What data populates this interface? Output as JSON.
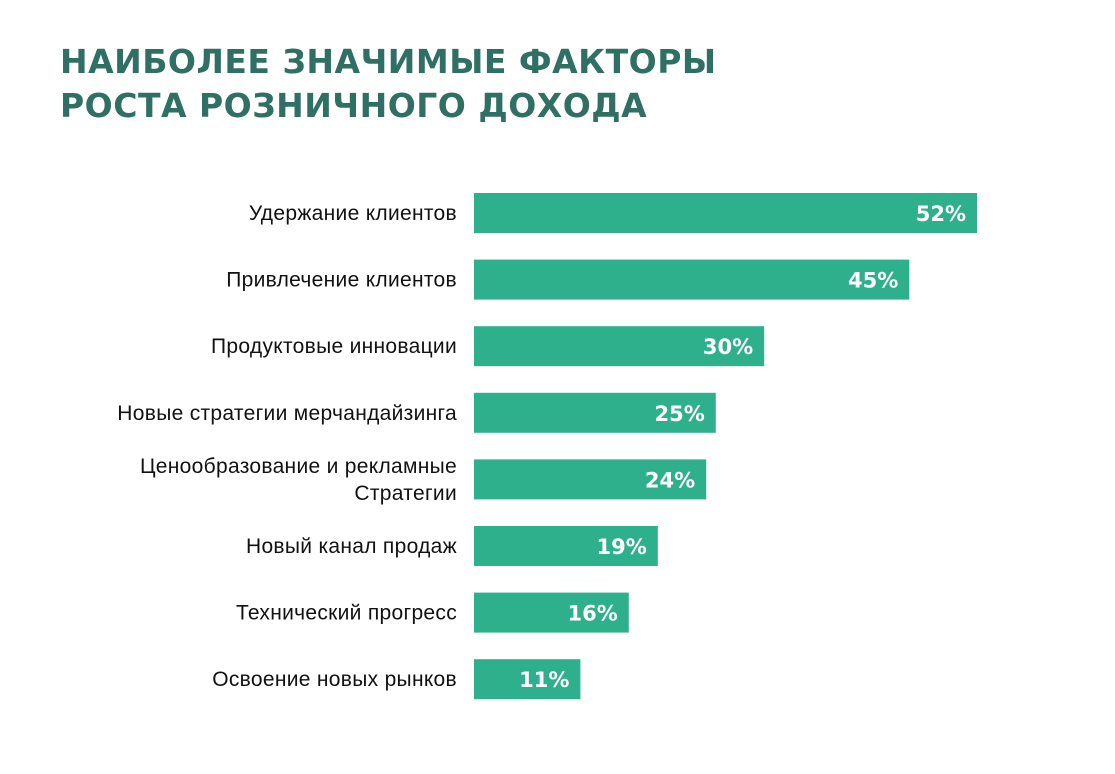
{
  "title_lines": [
    "НАИБОЛЕЕ ЗНАЧИМЫЕ ФАКТОРЫ",
    "РОСТА РОЗНИЧНОГО ДОХОДА"
  ],
  "colors": {
    "title": "#2f6f64",
    "bar": "#2fb08d",
    "value_label": "#ffffff",
    "category_label": "#111111"
  },
  "chart_data": {
    "type": "bar",
    "orientation": "horizontal",
    "title": "НАИБОЛЕЕ ЗНАЧИМЫЕ ФАКТОРЫ РОСТА РОЗНИЧНОГО ДОХОДА",
    "categories": [
      [
        "Удержание клиентов"
      ],
      [
        "Привлечение клиентов"
      ],
      [
        "Продуктовые инновации"
      ],
      [
        "Новые стратегии мерчандайзинга"
      ],
      [
        "Ценообразование и рекламные",
        "Стратегии"
      ],
      [
        "Новый канал продаж"
      ],
      [
        "Технический прогресс"
      ],
      [
        "Освоение новых рынков"
      ]
    ],
    "values": [
      52,
      45,
      30,
      25,
      24,
      19,
      16,
      11
    ],
    "value_labels": [
      "52%",
      "45%",
      "30%",
      "25%",
      "24%",
      "19%",
      "16%",
      "11%"
    ],
    "unit": "%",
    "xlim": [
      0,
      52
    ],
    "grid": false,
    "legend": "none"
  }
}
